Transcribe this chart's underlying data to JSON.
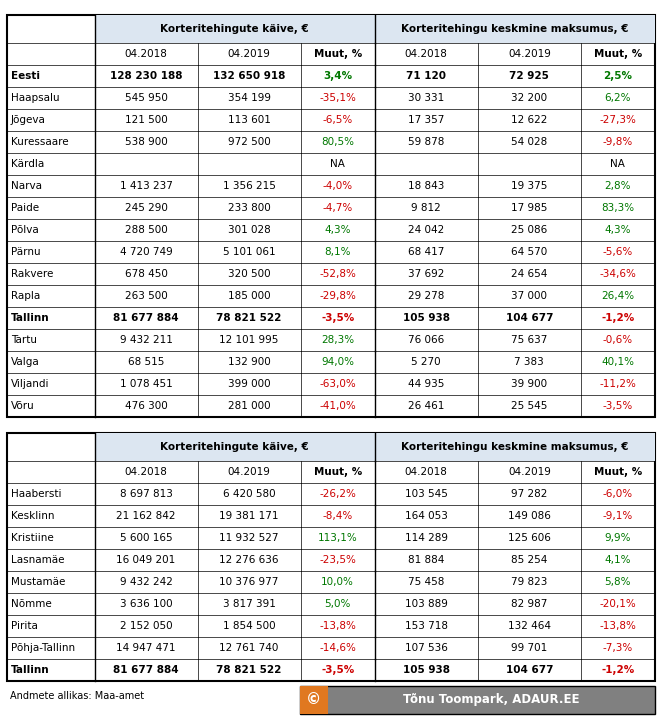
{
  "table1": {
    "header1": "Korteritehingute käive, €",
    "header2": "Korteritehingu keskmine maksumus, €",
    "col_headers": [
      "04.2018",
      "04.2019",
      "Muut, %",
      "04.2018",
      "04.2019",
      "Muut, %"
    ],
    "rows": [
      {
        "name": "Eesti",
        "bold": true,
        "vals": [
          "128 230 188",
          "132 650 918",
          "3,4%",
          "71 120",
          "72 925",
          "2,5%"
        ],
        "pct_signs": [
          1,
          1
        ]
      },
      {
        "name": "Haapsalu",
        "bold": false,
        "vals": [
          "545 950",
          "354 199",
          "-35,1%",
          "30 331",
          "32 200",
          "6,2%"
        ],
        "pct_signs": [
          -1,
          1
        ]
      },
      {
        "name": "Jõgeva",
        "bold": false,
        "vals": [
          "121 500",
          "113 601",
          "-6,5%",
          "17 357",
          "12 622",
          "-27,3%"
        ],
        "pct_signs": [
          -1,
          -1
        ]
      },
      {
        "name": "Kuressaare",
        "bold": false,
        "vals": [
          "538 900",
          "972 500",
          "80,5%",
          "59 878",
          "54 028",
          "-9,8%"
        ],
        "pct_signs": [
          1,
          -1
        ]
      },
      {
        "name": "Kärdla",
        "bold": false,
        "vals": [
          "",
          "",
          "NA",
          "",
          "",
          "NA"
        ],
        "pct_signs": [
          0,
          0
        ]
      },
      {
        "name": "Narva",
        "bold": false,
        "vals": [
          "1 413 237",
          "1 356 215",
          "-4,0%",
          "18 843",
          "19 375",
          "2,8%"
        ],
        "pct_signs": [
          -1,
          1
        ]
      },
      {
        "name": "Paide",
        "bold": false,
        "vals": [
          "245 290",
          "233 800",
          "-4,7%",
          "9 812",
          "17 985",
          "83,3%"
        ],
        "pct_signs": [
          -1,
          1
        ]
      },
      {
        "name": "Põlva",
        "bold": false,
        "vals": [
          "288 500",
          "301 028",
          "4,3%",
          "24 042",
          "25 086",
          "4,3%"
        ],
        "pct_signs": [
          1,
          1
        ]
      },
      {
        "name": "Pärnu",
        "bold": false,
        "vals": [
          "4 720 749",
          "5 101 061",
          "8,1%",
          "68 417",
          "64 570",
          "-5,6%"
        ],
        "pct_signs": [
          1,
          -1
        ]
      },
      {
        "name": "Rakvere",
        "bold": false,
        "vals": [
          "678 450",
          "320 500",
          "-52,8%",
          "37 692",
          "24 654",
          "-34,6%"
        ],
        "pct_signs": [
          -1,
          -1
        ]
      },
      {
        "name": "Rapla",
        "bold": false,
        "vals": [
          "263 500",
          "185 000",
          "-29,8%",
          "29 278",
          "37 000",
          "26,4%"
        ],
        "pct_signs": [
          -1,
          1
        ]
      },
      {
        "name": "Tallinn",
        "bold": true,
        "vals": [
          "81 677 884",
          "78 821 522",
          "-3,5%",
          "105 938",
          "104 677",
          "-1,2%"
        ],
        "pct_signs": [
          -1,
          -1
        ]
      },
      {
        "name": "Tartu",
        "bold": false,
        "vals": [
          "9 432 211",
          "12 101 995",
          "28,3%",
          "76 066",
          "75 637",
          "-0,6%"
        ],
        "pct_signs": [
          1,
          -1
        ]
      },
      {
        "name": "Valga",
        "bold": false,
        "vals": [
          "68 515",
          "132 900",
          "94,0%",
          "5 270",
          "7 383",
          "40,1%"
        ],
        "pct_signs": [
          1,
          1
        ]
      },
      {
        "name": "Viljandi",
        "bold": false,
        "vals": [
          "1 078 451",
          "399 000",
          "-63,0%",
          "44 935",
          "39 900",
          "-11,2%"
        ],
        "pct_signs": [
          -1,
          -1
        ]
      },
      {
        "name": "Võru",
        "bold": false,
        "vals": [
          "476 300",
          "281 000",
          "-41,0%",
          "26 461",
          "25 545",
          "-3,5%"
        ],
        "pct_signs": [
          -1,
          -1
        ]
      }
    ]
  },
  "table2": {
    "header1": "Korteritehingute käive, €",
    "header2": "Korteritehingu keskmine maksumus, €",
    "col_headers": [
      "04.2018",
      "04.2019",
      "Muut, %",
      "04.2018",
      "04.2019",
      "Muut, %"
    ],
    "rows": [
      {
        "name": "Haabersti",
        "bold": false,
        "vals": [
          "8 697 813",
          "6 420 580",
          "-26,2%",
          "103 545",
          "97 282",
          "-6,0%"
        ],
        "pct_signs": [
          -1,
          -1
        ]
      },
      {
        "name": "Kesklinn",
        "bold": false,
        "vals": [
          "21 162 842",
          "19 381 171",
          "-8,4%",
          "164 053",
          "149 086",
          "-9,1%"
        ],
        "pct_signs": [
          -1,
          -1
        ]
      },
      {
        "name": "Kristiine",
        "bold": false,
        "vals": [
          "5 600 165",
          "11 932 527",
          "113,1%",
          "114 289",
          "125 606",
          "9,9%"
        ],
        "pct_signs": [
          1,
          1
        ]
      },
      {
        "name": "Lasnamäe",
        "bold": false,
        "vals": [
          "16 049 201",
          "12 276 636",
          "-23,5%",
          "81 884",
          "85 254",
          "4,1%"
        ],
        "pct_signs": [
          -1,
          1
        ]
      },
      {
        "name": "Mustamäe",
        "bold": false,
        "vals": [
          "9 432 242",
          "10 376 977",
          "10,0%",
          "75 458",
          "79 823",
          "5,8%"
        ],
        "pct_signs": [
          1,
          1
        ]
      },
      {
        "name": "Nõmme",
        "bold": false,
        "vals": [
          "3 636 100",
          "3 817 391",
          "5,0%",
          "103 889",
          "82 987",
          "-20,1%"
        ],
        "pct_signs": [
          1,
          -1
        ]
      },
      {
        "name": "Pirita",
        "bold": false,
        "vals": [
          "2 152 050",
          "1 854 500",
          "-13,8%",
          "153 718",
          "132 464",
          "-13,8%"
        ],
        "pct_signs": [
          -1,
          -1
        ]
      },
      {
        "name": "Põhja-Tallinn",
        "bold": false,
        "vals": [
          "14 947 471",
          "12 761 740",
          "-14,6%",
          "107 536",
          "99 701",
          "-7,3%"
        ],
        "pct_signs": [
          -1,
          -1
        ]
      },
      {
        "name": "Tallinn",
        "bold": true,
        "vals": [
          "81 677 884",
          "78 821 522",
          "-3,5%",
          "105 938",
          "104 677",
          "-1,2%"
        ],
        "pct_signs": [
          -1,
          -1
        ]
      }
    ]
  },
  "footer": "Andmete allikas: Maa-amet",
  "watermark": "© Tõnu Toompark, ADAUR.EE",
  "green_color": "#007700",
  "red_color": "#cc0000",
  "header_bg": "#dce6f1",
  "outer_lw": 1.5,
  "inner_lw": 0.5,
  "divider_lw": 1.0,
  "font_size": 7.5,
  "watermark_bg": "#e07820",
  "watermark_circle_bg": "#c05800"
}
